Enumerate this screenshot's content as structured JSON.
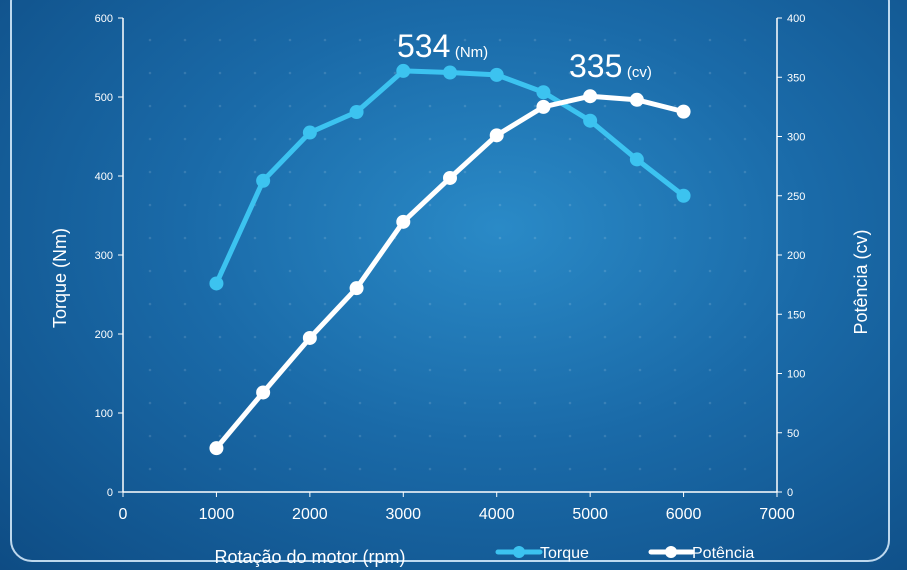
{
  "chart_data": {
    "type": "line",
    "xlabel": "Rotação do motor (rpm)",
    "ylabel_left": "Torque (Nm)",
    "ylabel_right": "Potência (cv)",
    "x_ticks": [
      "0",
      "1000",
      "2000",
      "3000",
      "4000",
      "5000",
      "6000",
      "7000"
    ],
    "y_left_ticks": [
      "0",
      "100",
      "200",
      "300",
      "400",
      "500",
      "600"
    ],
    "y_right_ticks": [
      "0",
      "50",
      "100",
      "150",
      "200",
      "250",
      "300",
      "350",
      "400"
    ],
    "xlim": [
      0,
      7000
    ],
    "ylim_left": [
      0,
      600
    ],
    "ylim_right": [
      0,
      400
    ],
    "grid": false,
    "legend_position": "bottom-right",
    "series": [
      {
        "name": "Torque",
        "axis": "left",
        "color": "#3cc3f0",
        "x": [
          1000,
          1500,
          2000,
          2500,
          3000,
          3500,
          4000,
          4500,
          5000,
          5500,
          6000
        ],
        "values": [
          264,
          394,
          455,
          481,
          533,
          531,
          528,
          506,
          470,
          421,
          375
        ]
      },
      {
        "name": "Potência",
        "axis": "right",
        "color": "#ffffff",
        "x": [
          1000,
          1500,
          2000,
          2500,
          3000,
          3500,
          4000,
          4500,
          5000,
          5500,
          6000
        ],
        "values": [
          37,
          84,
          130,
          172,
          228,
          265,
          301,
          325,
          334,
          331,
          321
        ]
      }
    ],
    "annotations": [
      {
        "value": "534",
        "unit": "(Nm)"
      },
      {
        "value": "335",
        "unit": "(cv)"
      }
    ]
  }
}
